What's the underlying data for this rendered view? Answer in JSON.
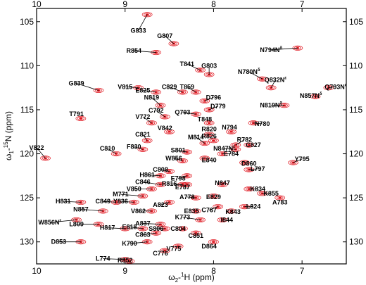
{
  "chart_data": {
    "type": "scatter",
    "title": "",
    "xlabel_base": "ω",
    "xlabel_sub": "2",
    "xlabel_rest": "-",
    "xlabel_iso": "1",
    "xlabel_nucleus": "H (ppm)",
    "ylabel_base": "ω",
    "ylabel_sub": "1",
    "ylabel_rest": "-",
    "ylabel_iso": "15",
    "ylabel_nucleus": "N (ppm)",
    "xlim": [
      10,
      6.5
    ],
    "ylim": [
      132.5,
      103.5
    ],
    "x_ticks": [
      10,
      9,
      8,
      7
    ],
    "y_ticks": [
      105,
      110,
      115,
      120,
      125,
      130
    ],
    "grid": false,
    "peak_color": "#e0151e",
    "peaks": [
      {
        "label": "G833",
        "x": 8.75,
        "y": 104.2,
        "lx": 8.85,
        "ly": 106.0
      },
      {
        "label": "G807",
        "x": 8.45,
        "y": 107.5,
        "lx": 8.55,
        "ly": 106.6
      },
      {
        "label": "R854",
        "x": 8.65,
        "y": 108.5,
        "lx": 8.9,
        "ly": 108.3
      },
      {
        "label": "N794N",
        "sup": "δ",
        "x": 7.05,
        "y": 108.0,
        "lx": 7.35,
        "ly": 108.2
      },
      {
        "label": "T841",
        "x": 8.15,
        "y": 110.5,
        "lx": 8.3,
        "ly": 109.8
      },
      {
        "label": "G803",
        "x": 8.05,
        "y": 111.0,
        "lx": 8.05,
        "ly": 110.0
      },
      {
        "label": "N780N",
        "sup": "δ",
        "x": 7.45,
        "y": 111.5,
        "lx": 7.6,
        "ly": 110.7
      },
      {
        "label": "Q832N",
        "sup": "ε",
        "x": 7.35,
        "y": 112.5,
        "lx": 7.3,
        "ly": 111.6
      },
      {
        "label": "Q793N",
        "sup": "ε",
        "x": 6.7,
        "y": 112.5,
        "lx": 6.62,
        "ly": 112.4
      },
      {
        "label": "G839",
        "x": 9.3,
        "y": 112.8,
        "lx": 9.55,
        "ly": 112.0
      },
      {
        "label": "V815",
        "x": 8.85,
        "y": 112.5,
        "lx": 9.0,
        "ly": 112.4
      },
      {
        "label": "E825",
        "x": 8.65,
        "y": 113.0,
        "lx": 8.8,
        "ly": 112.8
      },
      {
        "label": "C829",
        "x": 8.35,
        "y": 113.0,
        "lx": 8.5,
        "ly": 112.4
      },
      {
        "label": "T859",
        "x": 8.2,
        "y": 113.0,
        "lx": 8.3,
        "ly": 112.4
      },
      {
        "label": "N857N",
        "sup": "δ",
        "x": 6.85,
        "y": 113.5,
        "lx": 6.9,
        "ly": 113.4
      },
      {
        "label": "N819",
        "x": 8.6,
        "y": 114.5,
        "lx": 8.7,
        "ly": 113.6
      },
      {
        "label": "D796",
        "x": 8.1,
        "y": 114.0,
        "lx": 8.0,
        "ly": 113.6
      },
      {
        "label": "N819N",
        "sup": "δ",
        "x": 7.2,
        "y": 114.5,
        "lx": 7.35,
        "ly": 114.5
      },
      {
        "label": "D779",
        "x": 8.05,
        "y": 115.0,
        "lx": 7.95,
        "ly": 114.6
      },
      {
        "label": "C792",
        "x": 8.55,
        "y": 115.8,
        "lx": 8.65,
        "ly": 115.1
      },
      {
        "label": "Q793",
        "x": 8.2,
        "y": 115.5,
        "lx": 8.35,
        "ly": 115.3
      },
      {
        "label": "T791",
        "x": 9.5,
        "y": 116.0,
        "lx": 9.55,
        "ly": 115.5
      },
      {
        "label": "V772",
        "x": 8.7,
        "y": 116.5,
        "lx": 8.8,
        "ly": 115.8
      },
      {
        "label": "T848",
        "x": 8.05,
        "y": 116.5,
        "lx": 8.1,
        "ly": 116.1
      },
      {
        "label": "N794",
        "x": 7.8,
        "y": 117.5,
        "lx": 7.82,
        "ly": 117.0
      },
      {
        "label": "N780",
        "x": 7.55,
        "y": 116.5,
        "lx": 7.45,
        "ly": 116.6
      },
      {
        "label": "V842",
        "x": 8.5,
        "y": 117.5,
        "lx": 8.55,
        "ly": 117.1
      },
      {
        "label": "R820",
        "x": 8.05,
        "y": 117.8,
        "lx": 8.05,
        "ly": 117.2
      },
      {
        "label": "C821",
        "x": 8.75,
        "y": 118.5,
        "lx": 8.8,
        "ly": 117.8
      },
      {
        "label": "R826",
        "x": 8.0,
        "y": 118.5,
        "lx": 8.05,
        "ly": 118.0
      },
      {
        "label": "M814",
        "x": 8.1,
        "y": 118.8,
        "lx": 8.2,
        "ly": 118.1
      },
      {
        "label": "R782",
        "x": 7.75,
        "y": 119.0,
        "lx": 7.65,
        "ly": 118.4
      },
      {
        "label": "C827",
        "x": 7.6,
        "y": 119.0,
        "lx": 7.55,
        "ly": 119.0
      },
      {
        "label": "N847N",
        "sup": "ε",
        "x": 7.75,
        "y": 119.5,
        "lx": 7.88,
        "ly": 119.4
      },
      {
        "label": "F830",
        "x": 8.8,
        "y": 119.5,
        "lx": 8.9,
        "ly": 119.2
      },
      {
        "label": "S801",
        "x": 8.3,
        "y": 119.8,
        "lx": 8.4,
        "ly": 119.6
      },
      {
        "label": "C810",
        "x": 9.1,
        "y": 120.0,
        "lx": 9.2,
        "ly": 119.4
      },
      {
        "label": "V822",
        "x": 9.9,
        "y": 120.5,
        "lx": 10.0,
        "ly": 119.3
      },
      {
        "label": "E784",
        "x": 7.9,
        "y": 120.0,
        "lx": 7.8,
        "ly": 120.0
      },
      {
        "label": "W856",
        "x": 8.35,
        "y": 120.8,
        "lx": 8.45,
        "ly": 120.5
      },
      {
        "label": "E840",
        "x": 8.1,
        "y": 120.5,
        "lx": 8.05,
        "ly": 120.7
      },
      {
        "label": "Y795",
        "x": 7.1,
        "y": 121.0,
        "lx": 7.0,
        "ly": 120.6
      },
      {
        "label": "D860",
        "x": 7.65,
        "y": 121.0,
        "lx": 7.6,
        "ly": 121.1
      },
      {
        "label": "L797",
        "x": 7.6,
        "y": 121.8,
        "lx": 7.5,
        "ly": 121.7
      },
      {
        "label": "C808",
        "x": 8.5,
        "y": 122.0,
        "lx": 8.6,
        "ly": 121.8
      },
      {
        "label": "H861",
        "x": 8.6,
        "y": 122.5,
        "lx": 8.75,
        "ly": 122.4
      },
      {
        "label": "E798",
        "x": 8.3,
        "y": 122.5,
        "lx": 8.4,
        "ly": 122.8
      },
      {
        "label": "C846",
        "x": 8.6,
        "y": 123.5,
        "lx": 8.8,
        "ly": 123.2
      },
      {
        "label": "R816",
        "x": 8.35,
        "y": 123.5,
        "lx": 8.5,
        "ly": 123.4
      },
      {
        "label": "E787",
        "x": 8.3,
        "y": 123.5,
        "lx": 8.35,
        "ly": 123.8
      },
      {
        "label": "N847",
        "x": 7.9,
        "y": 123.5,
        "lx": 7.9,
        "ly": 123.3
      },
      {
        "label": "V850",
        "x": 8.7,
        "y": 124.0,
        "lx": 8.9,
        "ly": 124.0
      },
      {
        "label": "K834",
        "x": 7.6,
        "y": 124.0,
        "lx": 7.5,
        "ly": 124.0
      },
      {
        "label": "K855",
        "x": 7.45,
        "y": 124.5,
        "lx": 7.35,
        "ly": 124.5
      },
      {
        "label": "M771",
        "x": 8.8,
        "y": 124.8,
        "lx": 9.05,
        "ly": 124.6
      },
      {
        "label": "A778",
        "x": 8.2,
        "y": 125.0,
        "lx": 8.3,
        "ly": 124.9
      },
      {
        "label": "E829",
        "x": 8.0,
        "y": 124.8,
        "lx": 8.0,
        "ly": 124.9
      },
      {
        "label": "A783",
        "x": 7.25,
        "y": 125.0,
        "lx": 7.25,
        "ly": 125.5
      },
      {
        "label": "H831",
        "x": 9.5,
        "y": 125.5,
        "lx": 9.7,
        "ly": 125.4
      },
      {
        "label": "C849",
        "x": 9.1,
        "y": 125.5,
        "lx": 9.25,
        "ly": 125.4
      },
      {
        "label": "Y836",
        "x": 8.9,
        "y": 125.5,
        "lx": 9.05,
        "ly": 125.4
      },
      {
        "label": "A823",
        "x": 8.5,
        "y": 125.5,
        "lx": 8.6,
        "ly": 125.8
      },
      {
        "label": "L824",
        "x": 7.65,
        "y": 126.0,
        "lx": 7.55,
        "ly": 126.0
      },
      {
        "label": "N857",
        "x": 9.25,
        "y": 126.5,
        "lx": 9.5,
        "ly": 126.3
      },
      {
        "label": "V862",
        "x": 8.7,
        "y": 126.5,
        "lx": 8.85,
        "ly": 126.5
      },
      {
        "label": "E835",
        "x": 8.2,
        "y": 126.5,
        "lx": 8.25,
        "ly": 126.5
      },
      {
        "label": "C767",
        "x": 7.95,
        "y": 126.0,
        "lx": 8.05,
        "ly": 126.4
      },
      {
        "label": "K843",
        "x": 7.8,
        "y": 126.5,
        "lx": 7.78,
        "ly": 126.6
      },
      {
        "label": "K773",
        "x": 8.15,
        "y": 127.5,
        "lx": 8.35,
        "ly": 127.2
      },
      {
        "label": "I844",
        "x": 7.9,
        "y": 127.5,
        "lx": 7.85,
        "ly": 127.5
      },
      {
        "label": "W856N",
        "sup": "ε",
        "x": 9.55,
        "y": 127.5,
        "lx": 9.85,
        "ly": 127.8
      },
      {
        "label": "L809",
        "x": 9.3,
        "y": 128.0,
        "lx": 9.55,
        "ly": 128.0
      },
      {
        "label": "H817",
        "x": 9.0,
        "y": 128.5,
        "lx": 9.2,
        "ly": 128.4
      },
      {
        "label": "E818",
        "x": 8.8,
        "y": 128.5,
        "lx": 8.95,
        "ly": 128.3
      },
      {
        "label": "A837",
        "x": 8.6,
        "y": 128.0,
        "lx": 8.8,
        "ly": 127.9
      },
      {
        "label": "S806",
        "x": 8.55,
        "y": 128.5,
        "lx": 8.65,
        "ly": 128.5
      },
      {
        "label": "C804",
        "x": 8.35,
        "y": 128.5,
        "lx": 8.4,
        "ly": 128.5
      },
      {
        "label": "C863",
        "x": 8.65,
        "y": 129.0,
        "lx": 8.8,
        "ly": 129.2
      },
      {
        "label": "C851",
        "x": 8.2,
        "y": 129.0,
        "lx": 8.2,
        "ly": 129.3
      },
      {
        "label": "D853",
        "x": 9.5,
        "y": 130.0,
        "lx": 9.75,
        "ly": 130.0
      },
      {
        "label": "K790",
        "x": 8.75,
        "y": 130.0,
        "lx": 8.95,
        "ly": 130.2
      },
      {
        "label": "V775",
        "x": 8.4,
        "y": 130.5,
        "lx": 8.45,
        "ly": 130.8
      },
      {
        "label": "D864",
        "x": 8.0,
        "y": 130.0,
        "lx": 8.05,
        "ly": 130.5
      },
      {
        "label": "C776",
        "x": 8.55,
        "y": 131.0,
        "lx": 8.6,
        "ly": 131.3
      },
      {
        "label": "L774",
        "x": 9.0,
        "y": 132.0,
        "lx": 9.25,
        "ly": 131.9
      },
      {
        "label": "R852",
        "x": 8.95,
        "y": 132.2,
        "lx": 9.0,
        "ly": 132.1
      }
    ]
  }
}
